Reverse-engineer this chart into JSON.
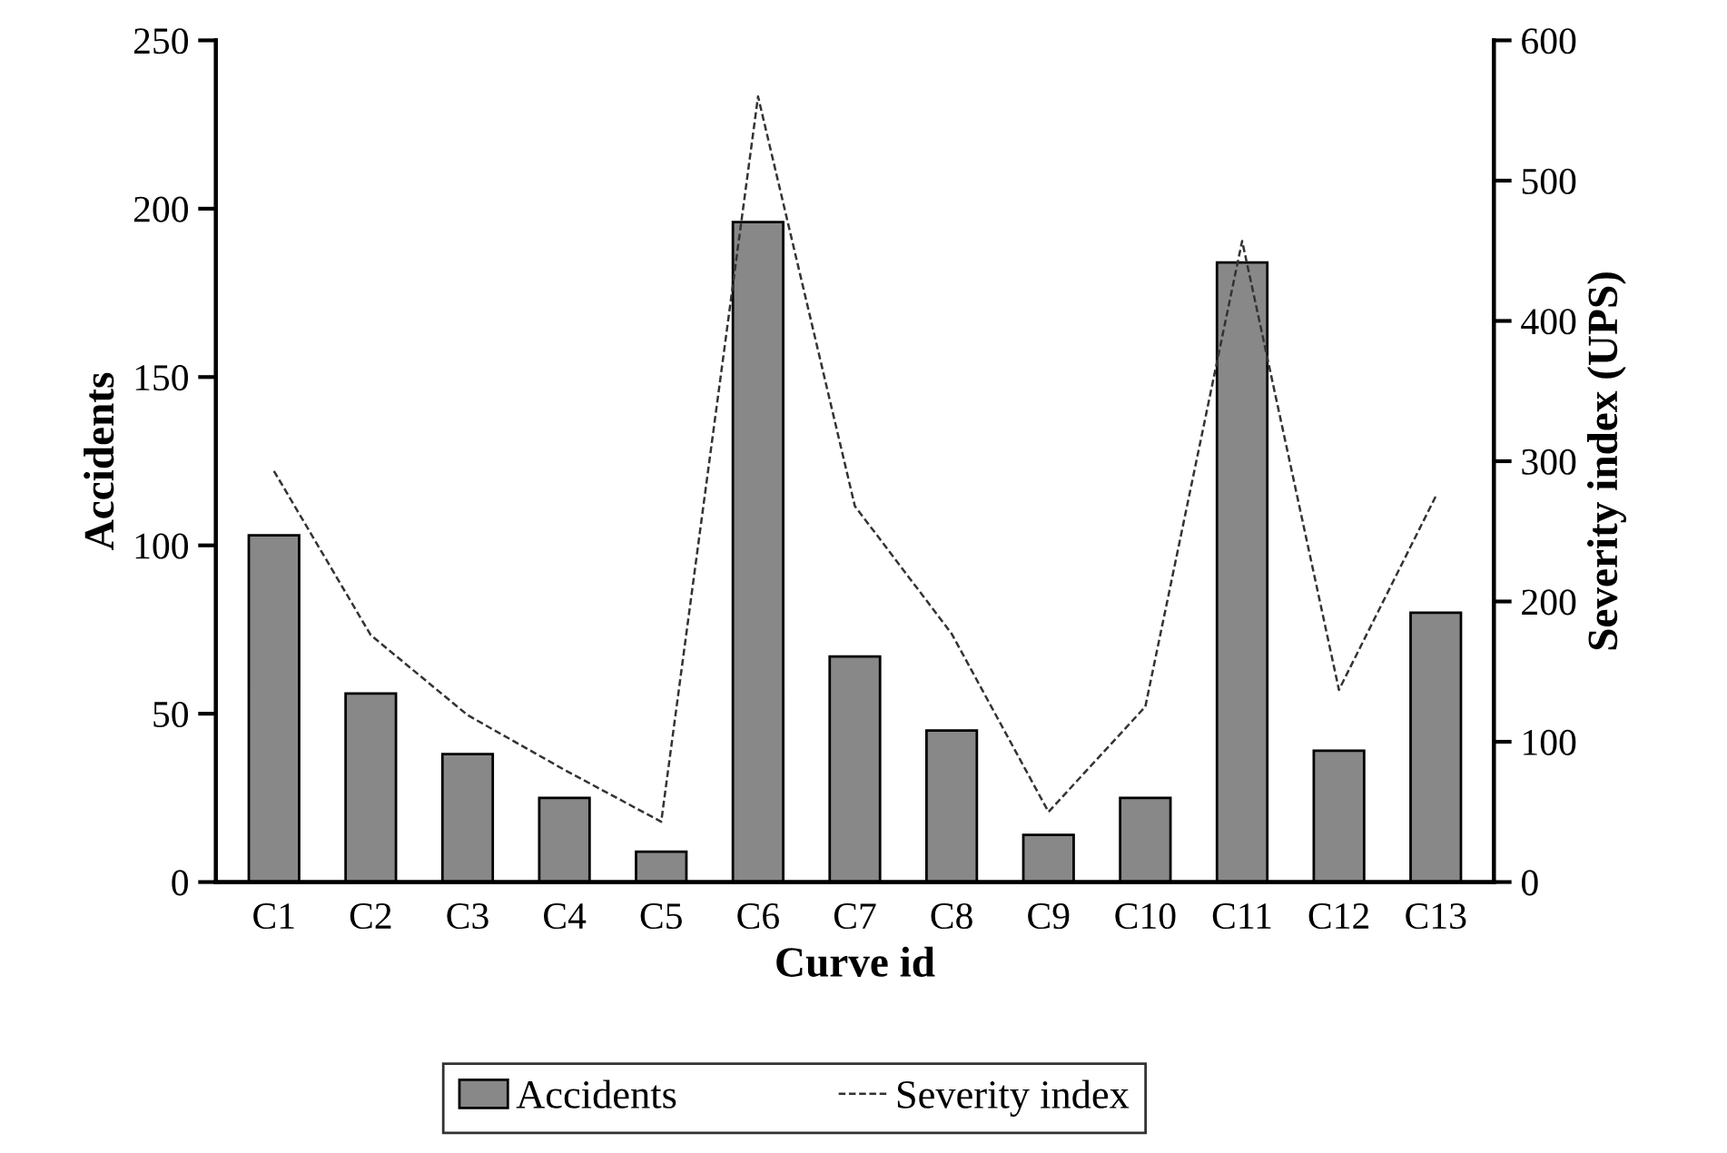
{
  "chart_data": {
    "type": "bar",
    "xlabel": "Curve id",
    "ylabel": "Accidents",
    "y2label": "Severity index (UPS)",
    "categories": [
      "C1",
      "C2",
      "C3",
      "C4",
      "C5",
      "C6",
      "C7",
      "C8",
      "C9",
      "C10",
      "C11",
      "C12",
      "C13"
    ],
    "series": [
      {
        "name": "Accidents",
        "color": "#888888",
        "values": [
          103,
          56,
          38,
          25,
          9,
          196,
          67,
          45,
          14,
          25,
          184,
          39,
          80
        ]
      },
      {
        "name": "Severity index",
        "type": "line",
        "axis": "y2",
        "color": "#333333",
        "line_style": "dashed",
        "values": [
          293,
          176,
          119,
          80,
          43,
          560,
          268,
          177,
          50,
          125,
          457,
          137,
          275
        ]
      }
    ],
    "ylim": [
      0,
      250
    ],
    "yticks": [
      0,
      50,
      100,
      150,
      200,
      250
    ],
    "y2lim": [
      0,
      600
    ],
    "y2ticks": [
      0,
      100,
      200,
      300,
      400,
      500,
      600
    ],
    "grid": false,
    "legend": "bottom"
  }
}
